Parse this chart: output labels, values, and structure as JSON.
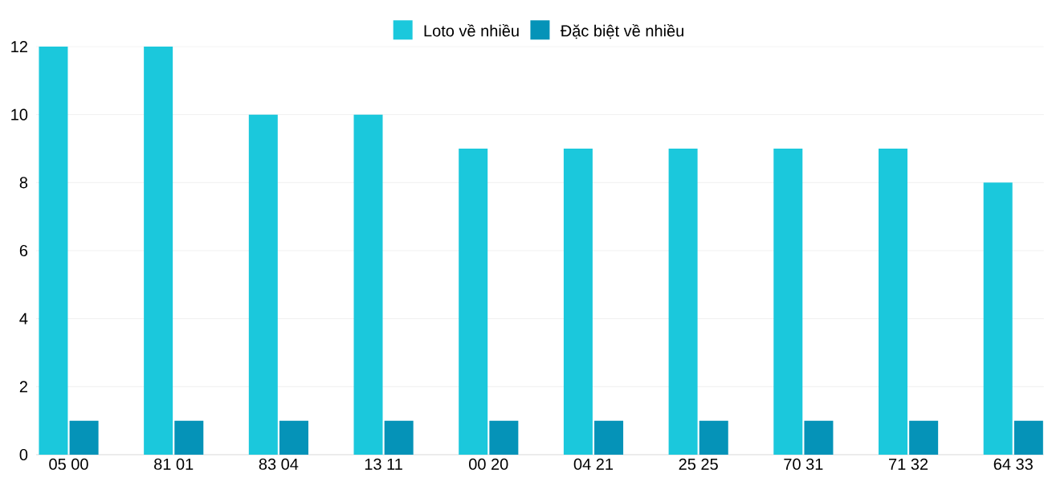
{
  "chart_data": {
    "type": "bar",
    "categories": [
      "05 00",
      "81 01",
      "83 04",
      "13 11",
      "00 20",
      "04 21",
      "25 25",
      "70 31",
      "71 32",
      "64 33"
    ],
    "series": [
      {
        "name": "Loto về nhiều",
        "color": "#1bc8dc",
        "values": [
          12,
          12,
          10,
          10,
          9,
          9,
          9,
          9,
          9,
          8
        ]
      },
      {
        "name": "Đặc biệt về nhiều",
        "color": "#0593b8",
        "values": [
          1,
          1,
          1,
          1,
          1,
          1,
          1,
          1,
          1,
          1
        ]
      }
    ],
    "ylim": [
      0,
      12
    ],
    "yticks": [
      0,
      2,
      4,
      6,
      8,
      10,
      12
    ],
    "grid": "y",
    "legend": "top"
  }
}
